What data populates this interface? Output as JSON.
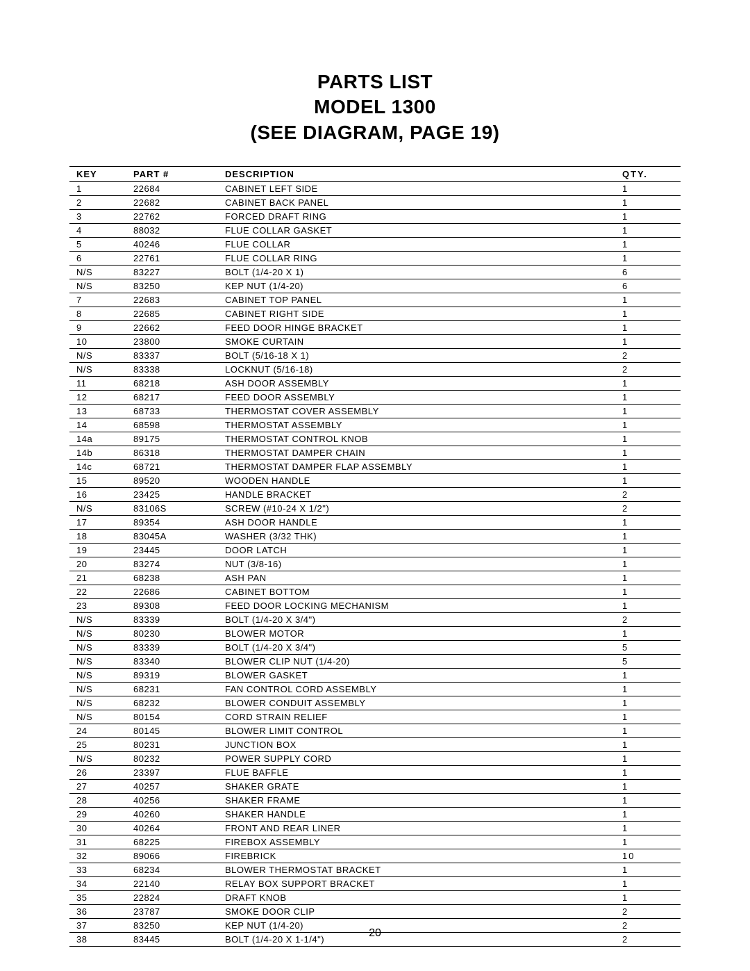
{
  "title_lines": [
    "PARTS LIST",
    "MODEL 1300",
    "(SEE DIAGRAM, PAGE 19)"
  ],
  "page_number": "20",
  "columns": {
    "key": "KEY",
    "part": "PART #",
    "description": "DESCRIPTION",
    "qty": "QTY."
  },
  "rows": [
    {
      "key": "1",
      "part": "22684",
      "desc": "CABINET LEFT SIDE",
      "qty": "1"
    },
    {
      "key": "2",
      "part": "22682",
      "desc": "CABINET BACK PANEL",
      "qty": "1"
    },
    {
      "key": "3",
      "part": "22762",
      "desc": "FORCED DRAFT RING",
      "qty": "1"
    },
    {
      "key": "4",
      "part": "88032",
      "desc": "FLUE COLLAR GASKET",
      "qty": "1"
    },
    {
      "key": "5",
      "part": "40246",
      "desc": "FLUE COLLAR",
      "qty": "1"
    },
    {
      "key": "6",
      "part": "22761",
      "desc": "FLUE COLLAR RING",
      "qty": "1"
    },
    {
      "key": "N/S",
      "part": "83227",
      "desc": "BOLT (1/4-20 X 1)",
      "qty": "6"
    },
    {
      "key": "N/S",
      "part": "83250",
      "desc": "KEP NUT (1/4-20)",
      "qty": "6"
    },
    {
      "key": "7",
      "part": "22683",
      "desc": "CABINET TOP PANEL",
      "qty": "1"
    },
    {
      "key": "8",
      "part": "22685",
      "desc": "CABINET RIGHT SIDE",
      "qty": "1"
    },
    {
      "key": "9",
      "part": "22662",
      "desc": "FEED DOOR HINGE BRACKET",
      "qty": "1"
    },
    {
      "key": "10",
      "part": "23800",
      "desc": "SMOKE CURTAIN",
      "qty": "1"
    },
    {
      "key": "N/S",
      "part": "83337",
      "desc": "BOLT (5/16-18 X 1)",
      "qty": "2"
    },
    {
      "key": "N/S",
      "part": "83338",
      "desc": "LOCKNUT (5/16-18)",
      "qty": "2"
    },
    {
      "key": "11",
      "part": "68218",
      "desc": "ASH DOOR ASSEMBLY",
      "qty": "1"
    },
    {
      "key": "12",
      "part": "68217",
      "desc": "FEED DOOR ASSEMBLY",
      "qty": "1"
    },
    {
      "key": "13",
      "part": "68733",
      "desc": "THERMOSTAT COVER ASSEMBLY",
      "qty": "1"
    },
    {
      "key": "14",
      "part": "68598",
      "desc": "THERMOSTAT ASSEMBLY",
      "qty": "1"
    },
    {
      "key": "14a",
      "part": "89175",
      "desc": "THERMOSTAT CONTROL KNOB",
      "qty": "1"
    },
    {
      "key": "14b",
      "part": "86318",
      "desc": "THERMOSTAT DAMPER CHAIN",
      "qty": "1"
    },
    {
      "key": "14c",
      "part": "68721",
      "desc": "THERMOSTAT DAMPER FLAP ASSEMBLY",
      "qty": "1"
    },
    {
      "key": "15",
      "part": "89520",
      "desc": "WOODEN HANDLE",
      "qty": "1"
    },
    {
      "key": "16",
      "part": "23425",
      "desc": "HANDLE BRACKET",
      "qty": "2"
    },
    {
      "key": "N/S",
      "part": "83106S",
      "desc": "SCREW (#10-24 X 1/2\")",
      "qty": "2"
    },
    {
      "key": "17",
      "part": "89354",
      "desc": "ASH DOOR HANDLE",
      "qty": "1"
    },
    {
      "key": "18",
      "part": "83045A",
      "desc": "WASHER (3/32 THK)",
      "qty": "1"
    },
    {
      "key": "19",
      "part": "23445",
      "desc": "DOOR LATCH",
      "qty": "1"
    },
    {
      "key": "20",
      "part": "83274",
      "desc": "NUT (3/8-16)",
      "qty": "1"
    },
    {
      "key": "21",
      "part": "68238",
      "desc": "ASH PAN",
      "qty": "1"
    },
    {
      "key": "22",
      "part": "22686",
      "desc": "CABINET BOTTOM",
      "qty": "1"
    },
    {
      "key": "23",
      "part": "89308",
      "desc": "FEED DOOR LOCKING MECHANISM",
      "qty": "1"
    },
    {
      "key": "N/S",
      "part": "83339",
      "desc": "BOLT (1/4-20 X 3/4\")",
      "qty": "2"
    },
    {
      "key": "N/S",
      "part": "80230",
      "desc": "BLOWER MOTOR",
      "qty": "1"
    },
    {
      "key": "N/S",
      "part": "83339",
      "desc": "BOLT (1/4-20 X 3/4\")",
      "qty": "5"
    },
    {
      "key": "N/S",
      "part": "83340",
      "desc": "BLOWER CLIP NUT (1/4-20)",
      "qty": "5"
    },
    {
      "key": "N/S",
      "part": "89319",
      "desc": "BLOWER GASKET",
      "qty": "1"
    },
    {
      "key": "N/S",
      "part": "68231",
      "desc": "FAN CONTROL CORD ASSEMBLY",
      "qty": "1"
    },
    {
      "key": "N/S",
      "part": "68232",
      "desc": "BLOWER CONDUIT ASSEMBLY",
      "qty": "1"
    },
    {
      "key": "N/S",
      "part": "80154",
      "desc": "CORD STRAIN RELIEF",
      "qty": "1"
    },
    {
      "key": "24",
      "part": "80145",
      "desc": "BLOWER LIMIT CONTROL",
      "qty": "1"
    },
    {
      "key": "25",
      "part": "80231",
      "desc": "JUNCTION BOX",
      "qty": "1"
    },
    {
      "key": "N/S",
      "part": "80232",
      "desc": "POWER SUPPLY CORD",
      "qty": "1"
    },
    {
      "key": "26",
      "part": "23397",
      "desc": "FLUE BAFFLE",
      "qty": "1"
    },
    {
      "key": "27",
      "part": "40257",
      "desc": "SHAKER GRATE",
      "qty": "1"
    },
    {
      "key": "28",
      "part": "40256",
      "desc": "SHAKER FRAME",
      "qty": "1"
    },
    {
      "key": "29",
      "part": "40260",
      "desc": "SHAKER HANDLE",
      "qty": "1"
    },
    {
      "key": "30",
      "part": "40264",
      "desc": "FRONT AND REAR LINER",
      "qty": "1"
    },
    {
      "key": "31",
      "part": "68225",
      "desc": "FIREBOX ASSEMBLY",
      "qty": "1"
    },
    {
      "key": "32",
      "part": "89066",
      "desc": "FIREBRICK",
      "qty": "10"
    },
    {
      "key": "33",
      "part": "68234",
      "desc": "BLOWER THERMOSTAT BRACKET",
      "qty": "1"
    },
    {
      "key": "34",
      "part": "22140",
      "desc": "RELAY BOX SUPPORT BRACKET",
      "qty": "1"
    },
    {
      "key": "35",
      "part": "22824",
      "desc": "DRAFT KNOB",
      "qty": "1"
    },
    {
      "key": "36",
      "part": "23787",
      "desc": "SMOKE DOOR CLIP",
      "qty": "2"
    },
    {
      "key": "37",
      "part": "83250",
      "desc": "KEP NUT (1/4-20)",
      "qty": "2"
    },
    {
      "key": "38",
      "part": "83445",
      "desc": "BOLT (1/4-20 X 1-1/4\")",
      "qty": "2"
    }
  ]
}
